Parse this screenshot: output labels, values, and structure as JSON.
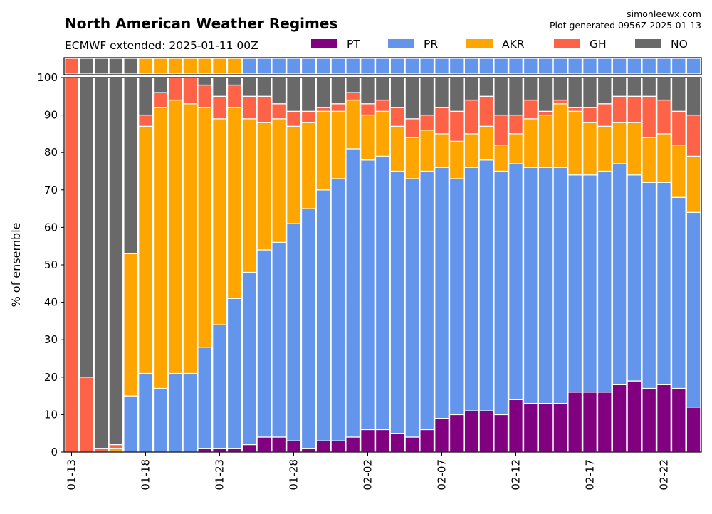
{
  "chart_data": {
    "type": "bar",
    "stacked": true,
    "title": "North American Weather Regimes",
    "subtitle": "ECMWF extended: 2025-01-11 00Z",
    "credit": "simonleewx.com",
    "generated": "Plot generated 0956Z 2025-01-13",
    "ylabel": "% of ensemble",
    "xlabel": "",
    "ylim": [
      0,
      100
    ],
    "yticks": [
      0,
      10,
      20,
      30,
      40,
      50,
      60,
      70,
      80,
      90,
      100
    ],
    "xticks": [
      "01-13",
      "01-18",
      "01-23",
      "01-28",
      "02-02",
      "02-07",
      "02-12",
      "02-17",
      "02-22"
    ],
    "grid": true,
    "legend_position": "top",
    "top_strip": "dominant regime per day",
    "categories": [
      "01-13",
      "01-14",
      "01-15",
      "01-16",
      "01-17",
      "01-18",
      "01-19",
      "01-20",
      "01-21",
      "01-22",
      "01-23",
      "01-24",
      "01-25",
      "01-26",
      "01-27",
      "01-28",
      "01-29",
      "01-30",
      "01-31",
      "02-01",
      "02-02",
      "02-03",
      "02-04",
      "02-05",
      "02-06",
      "02-07",
      "02-08",
      "02-09",
      "02-10",
      "02-11",
      "02-12",
      "02-13",
      "02-14",
      "02-15",
      "02-16",
      "02-17",
      "02-18",
      "02-19",
      "02-20",
      "02-21",
      "02-22",
      "02-23",
      "02-24"
    ],
    "series": [
      {
        "name": "PT",
        "color": "#800080",
        "values": [
          0,
          0,
          0,
          0,
          0,
          0,
          0,
          0,
          0,
          1,
          1,
          1,
          2,
          4,
          4,
          3,
          1,
          3,
          3,
          4,
          6,
          6,
          5,
          4,
          6,
          9,
          10,
          11,
          11,
          10,
          14,
          13,
          13,
          13,
          16,
          16,
          16,
          18,
          19,
          17,
          18,
          17,
          12
        ]
      },
      {
        "name": "PR",
        "color": "#6495ED",
        "values": [
          0,
          0,
          0,
          0,
          15,
          21,
          17,
          21,
          21,
          27,
          33,
          40,
          46,
          50,
          52,
          58,
          64,
          67,
          70,
          77,
          72,
          73,
          70,
          69,
          69,
          67,
          63,
          65,
          67,
          65,
          63,
          63,
          63,
          63,
          58,
          58,
          59,
          59,
          55,
          55,
          54,
          51,
          52
        ]
      },
      {
        "name": "AKR",
        "color": "#FFA500",
        "values": [
          0,
          0,
          0,
          1,
          38,
          66,
          75,
          73,
          72,
          64,
          55,
          51,
          41,
          34,
          33,
          26,
          23,
          21,
          18,
          13,
          12,
          12,
          12,
          11,
          11,
          9,
          10,
          9,
          9,
          7,
          8,
          13,
          14,
          17,
          17,
          14,
          12,
          11,
          14,
          12,
          13,
          14,
          15
        ]
      },
      {
        "name": "GH",
        "color": "#FF6347",
        "values": [
          100,
          20,
          1,
          1,
          0,
          3,
          4,
          6,
          7,
          6,
          6,
          6,
          6,
          7,
          4,
          4,
          3,
          1,
          2,
          2,
          3,
          3,
          5,
          5,
          4,
          7,
          8,
          9,
          8,
          8,
          5,
          5,
          1,
          1,
          1,
          4,
          6,
          7,
          7,
          11,
          9,
          9,
          11
        ]
      },
      {
        "name": "NO",
        "color": "#696969",
        "values": [
          0,
          80,
          99,
          98,
          47,
          10,
          4,
          0,
          0,
          2,
          5,
          2,
          5,
          5,
          7,
          9,
          9,
          8,
          7,
          4,
          7,
          6,
          8,
          11,
          10,
          8,
          9,
          6,
          5,
          10,
          10,
          6,
          9,
          6,
          8,
          8,
          7,
          5,
          5,
          5,
          6,
          9,
          10
        ]
      }
    ]
  }
}
